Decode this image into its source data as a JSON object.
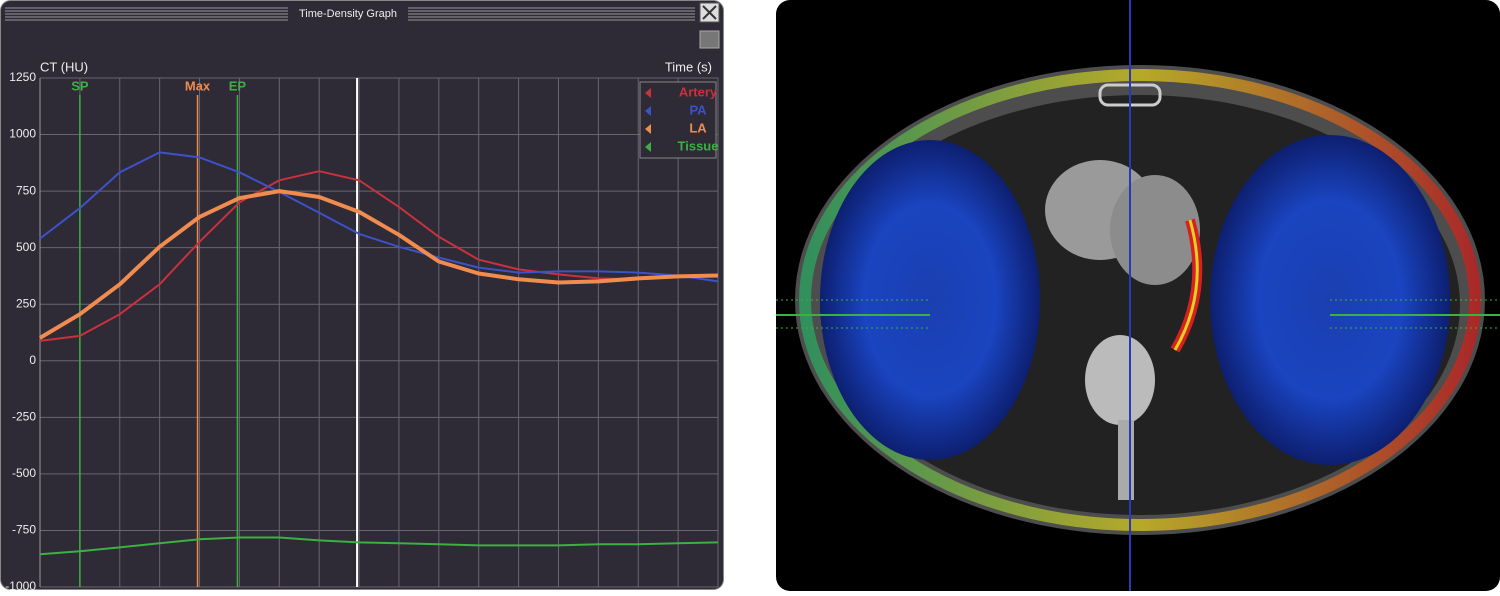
{
  "window": {
    "title": "Time-Density Graph"
  },
  "chart_data": {
    "type": "line",
    "y_label": "CT (HU)",
    "x_label": "Time (s)",
    "xlim": [
      0,
      17
    ],
    "xticks": [
      0,
      1,
      2,
      3,
      4,
      5,
      6,
      7,
      8,
      9,
      10,
      11,
      12,
      13,
      14,
      15,
      16,
      17
    ],
    "ylim": [
      -1000,
      1250
    ],
    "yticks": [
      -1000,
      -750,
      -500,
      -250,
      0,
      250,
      500,
      750,
      1000,
      1250
    ],
    "grid": true,
    "legend": "top-right",
    "x": [
      0,
      1,
      2,
      3,
      4,
      5,
      6,
      7,
      8,
      9,
      10,
      11,
      12,
      13,
      14,
      15,
      16,
      17
    ],
    "series": [
      {
        "name": "Artery",
        "color": "#c8323c",
        "width": 2,
        "values": [
          88,
          110,
          206,
          338,
          526,
          700,
          798,
          838,
          798,
          680,
          548,
          447,
          404,
          382,
          364,
          360,
          373,
          373
        ]
      },
      {
        "name": "PA",
        "color": "#3d52c8",
        "width": 2,
        "values": [
          540,
          675,
          833,
          921,
          899,
          833,
          746,
          654,
          561,
          504,
          456,
          412,
          390,
          395,
          395,
          390,
          377,
          351
        ]
      },
      {
        "name": "LA",
        "color": "#f08c50",
        "width": 4,
        "values": [
          101,
          206,
          338,
          504,
          636,
          719,
          750,
          724,
          658,
          557,
          439,
          386,
          360,
          346,
          351,
          364,
          373,
          377
        ]
      },
      {
        "name": "Tissue",
        "color": "#3cb043",
        "width": 2,
        "values": [
          -855,
          -842,
          -825,
          -807,
          -789,
          -781,
          -781,
          -794,
          -803,
          -807,
          -811,
          -816,
          -816,
          -816,
          -811,
          -811,
          -807,
          -803
        ]
      }
    ],
    "markers": [
      {
        "label": "SP",
        "x": 1,
        "color": "#3cb043"
      },
      {
        "label": "Max",
        "x": 3.95,
        "color": "#f08c50"
      },
      {
        "label": "EP",
        "x": 4.95,
        "color": "#3cb043"
      }
    ],
    "cursor_x": 7.95
  }
}
